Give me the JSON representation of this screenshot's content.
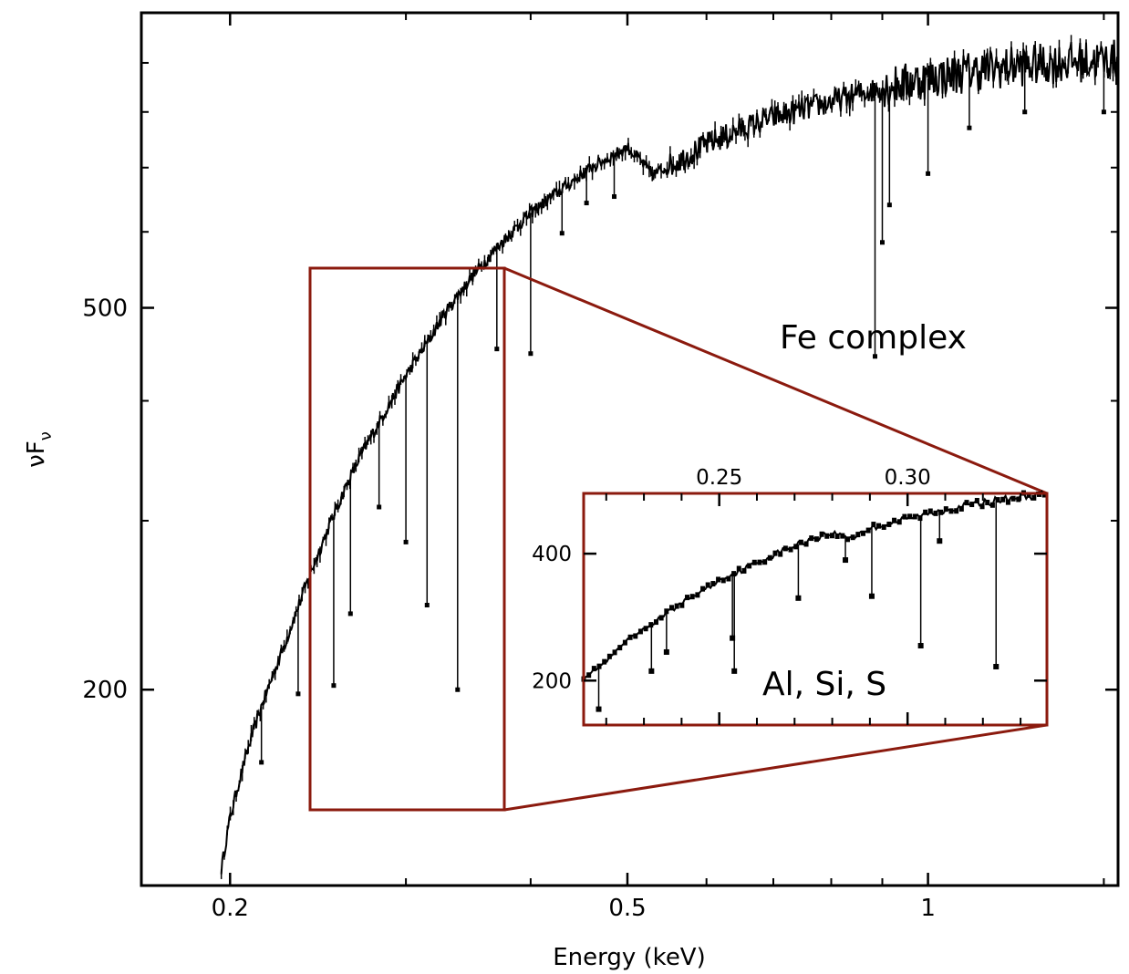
{
  "chart_data": [
    {
      "type": "line",
      "xlabel": "Energy (keV)",
      "ylabel": "νF",
      "ylabel_subscript": "ν",
      "x_scale": "log",
      "y_scale": "log",
      "xlim": [
        0.163,
        1.55
      ],
      "ylim": [
        125,
        1015
      ],
      "x_ticks": [
        0.2,
        0.5,
        1
      ],
      "x_tick_labels": [
        "0.2",
        "0.5",
        "1"
      ],
      "y_ticks": [
        500,
        200
      ],
      "y_tick_labels": [
        "500",
        "200"
      ],
      "annotation": "Fe complex",
      "series": [
        {
          "x": [
            0.196,
            0.2,
            0.205,
            0.21,
            0.215,
            0.22,
            0.225,
            0.23,
            0.235,
            0.24,
            0.25,
            0.26,
            0.27,
            0.28,
            0.29,
            0.3,
            0.31,
            0.32,
            0.33,
            0.35,
            0.37,
            0.4,
            0.43,
            0.46,
            0.5,
            0.53,
            0.56,
            0.6,
            0.65,
            0.7,
            0.75,
            0.8,
            0.85,
            0.9,
            0.95,
            1.0,
            1.1,
            1.2,
            1.3,
            1.4,
            1.55
          ],
          "y": [
            130,
            147,
            163,
            178,
            192,
            205,
            218,
            232,
            247,
            262,
            292,
            322,
            350,
            375,
            400,
            425,
            448,
            472,
            498,
            540,
            578,
            628,
            665,
            700,
            735,
            688,
            710,
            740,
            768,
            790,
            805,
            820,
            835,
            848,
            858,
            868,
            882,
            892,
            898,
            903,
            908
          ]
        }
      ],
      "absorption_lines": [
        {
          "x": 0.215,
          "y": 168
        },
        {
          "x": 0.234,
          "y": 198
        },
        {
          "x": 0.254,
          "y": 202
        },
        {
          "x": 0.264,
          "y": 240
        },
        {
          "x": 0.282,
          "y": 310
        },
        {
          "x": 0.3,
          "y": 285
        },
        {
          "x": 0.315,
          "y": 245
        },
        {
          "x": 0.338,
          "y": 200
        },
        {
          "x": 0.37,
          "y": 453
        },
        {
          "x": 0.4,
          "y": 448
        },
        {
          "x": 0.43,
          "y": 598
        },
        {
          "x": 0.455,
          "y": 643
        },
        {
          "x": 0.485,
          "y": 653
        },
        {
          "x": 0.885,
          "y": 445
        },
        {
          "x": 0.9,
          "y": 585
        },
        {
          "x": 0.915,
          "y": 640
        },
        {
          "x": 1.0,
          "y": 690
        },
        {
          "x": 1.1,
          "y": 770
        },
        {
          "x": 1.25,
          "y": 800
        },
        {
          "x": 1.5,
          "y": 800
        }
      ],
      "zoom_region": {
        "x": [
          0.215,
          0.337
        ],
        "y": [
          155,
          545
        ]
      }
    },
    {
      "type": "line",
      "title": "",
      "x_ticks": [
        0.25,
        0.3
      ],
      "x_tick_labels": [
        "0.25",
        "0.30"
      ],
      "y_ticks": [
        400,
        200
      ],
      "y_tick_labels": [
        "400",
        "200"
      ],
      "xlim": [
        0.214,
        0.337
      ],
      "ylim": [
        130,
        495
      ],
      "annotation": "Al, Si, S",
      "series": [
        {
          "x": [
            0.214,
            0.22,
            0.225,
            0.23,
            0.235,
            0.24,
            0.245,
            0.25,
            0.255,
            0.26,
            0.265,
            0.27,
            0.275,
            0.28,
            0.285,
            0.29,
            0.295,
            0.3,
            0.305,
            0.31,
            0.315,
            0.32,
            0.325,
            0.33,
            0.337
          ],
          "y": [
            205,
            230,
            260,
            280,
            302,
            322,
            340,
            358,
            372,
            385,
            400,
            412,
            425,
            432,
            425,
            440,
            448,
            455,
            462,
            470,
            475,
            480,
            485,
            490,
            493
          ]
        }
      ],
      "absorption_lines": [
        {
          "x": 0.218,
          "y": 155
        },
        {
          "x": 0.232,
          "y": 215
        },
        {
          "x": 0.236,
          "y": 245
        },
        {
          "x": 0.254,
          "y": 215
        },
        {
          "x": 0.2535,
          "y": 267
        },
        {
          "x": 0.271,
          "y": 330
        },
        {
          "x": 0.2835,
          "y": 390
        },
        {
          "x": 0.2905,
          "y": 333
        },
        {
          "x": 0.3035,
          "y": 255
        },
        {
          "x": 0.3085,
          "y": 420
        },
        {
          "x": 0.3235,
          "y": 222
        }
      ]
    }
  ],
  "colors": {
    "data": "#000000",
    "zoom_box": "#8b1a0e",
    "axes": "#000000"
  }
}
